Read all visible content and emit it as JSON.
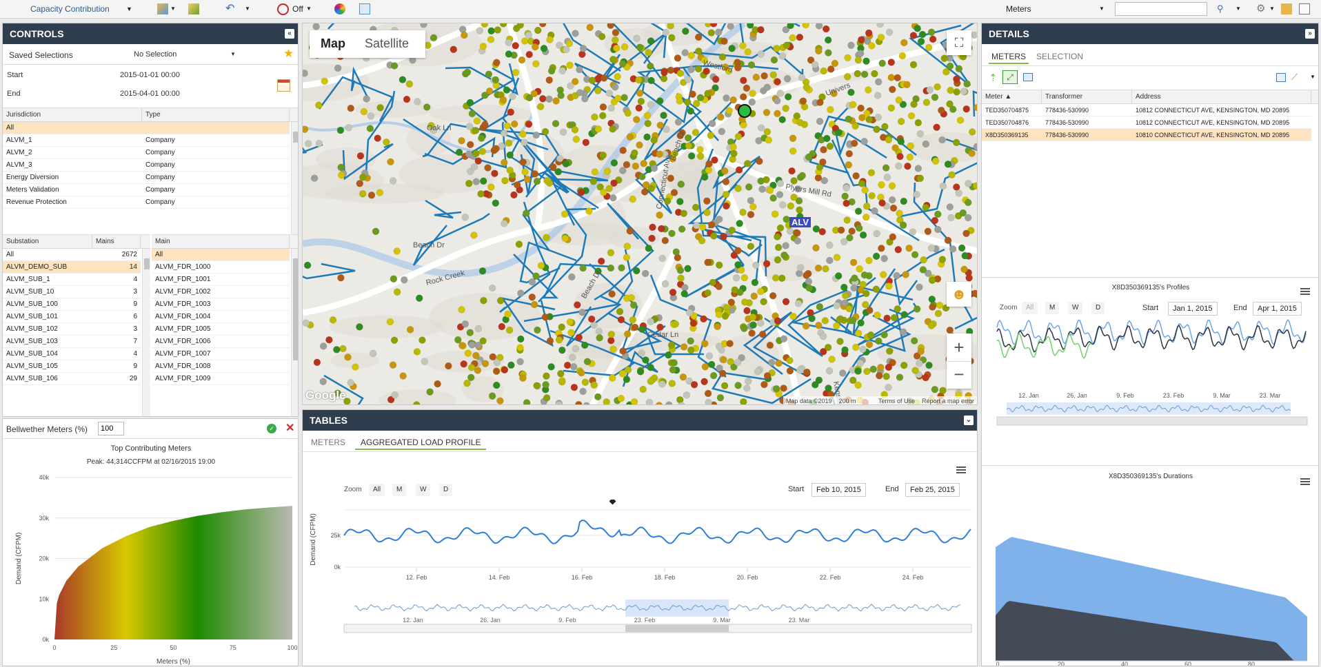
{
  "topbar": {
    "app_title": "Capacity Contribution",
    "filter_state": "Off",
    "layer_select": "Meters",
    "search_placeholder": ""
  },
  "controls": {
    "title": "CONTROLS",
    "saved_label": "Saved Selections",
    "saved_value": "No Selection",
    "start_label": "Start",
    "start_value": "2015-01-01 00:00",
    "end_label": "End",
    "end_value": "2015-04-01 00:00",
    "jurisdiction": {
      "headers": [
        "Jurisdiction",
        "Type"
      ],
      "rows": [
        [
          "All",
          ""
        ],
        [
          "ALVM_1",
          "Company"
        ],
        [
          "ALVM_2",
          "Company"
        ],
        [
          "ALVM_3",
          "Company"
        ],
        [
          "Energy Diversion",
          "Company"
        ],
        [
          "Meters Validation",
          "Company"
        ],
        [
          "Revenue Protection",
          "Company"
        ]
      ]
    },
    "substation": {
      "headers": [
        "Substation",
        "Mains"
      ],
      "rows": [
        [
          "All",
          "2672"
        ],
        [
          "ALVM_DEMO_SUB",
          "14"
        ],
        [
          "ALVM_SUB_1",
          "4"
        ],
        [
          "ALVM_SUB_10",
          "3"
        ],
        [
          "ALVM_SUB_100",
          "9"
        ],
        [
          "ALVM_SUB_101",
          "6"
        ],
        [
          "ALVM_SUB_102",
          "3"
        ],
        [
          "ALVM_SUB_103",
          "7"
        ],
        [
          "ALVM_SUB_104",
          "4"
        ],
        [
          "ALVM_SUB_105",
          "9"
        ],
        [
          "ALVM_SUB_106",
          "29"
        ]
      ]
    },
    "main": {
      "headers": [
        "Main"
      ],
      "rows": [
        "All",
        "ALVM_FDR_1000",
        "ALVM_FDR_1001",
        "ALVM_FDR_1002",
        "ALVM_FDR_1003",
        "ALVM_FDR_1004",
        "ALVM_FDR_1005",
        "ALVM_FDR_1006",
        "ALVM_FDR_1007",
        "ALVM_FDR_1008",
        "ALVM_FDR_1009"
      ]
    },
    "bellwether_label": "Bellwether Meters (%)",
    "bellwether_value": "100"
  },
  "top_chart": {
    "title": "Top Contributing Meters",
    "subtitle": "Peak: 44,314CCFPM at 02/16/2015 19:00",
    "ylabel": "Demand (CFPM)",
    "xlabel": "Meters (%)",
    "yticks": [
      "40k",
      "30k",
      "20k",
      "10k",
      "0k"
    ],
    "xticks": [
      "0",
      "25",
      "50",
      "75",
      "100"
    ]
  },
  "map": {
    "tab_map": "Map",
    "tab_satellite": "Satellite",
    "attribution": "Map data ©2019",
    "scale": "200 m",
    "terms": "Terms of Use",
    "report": "Report a map error",
    "google": "Google",
    "label": "ALV",
    "zoom_in": "+",
    "zoom_out": "−",
    "streets": [
      "Beach Dr",
      "Beach Dr",
      "Beach Dr",
      "Rock Creek",
      "Univers",
      "Connecticut Ave",
      "Plyers Mill Rd",
      "Kensington",
      "Cedar Ln",
      "Westford",
      "Oak Ln"
    ]
  },
  "tables": {
    "title": "TABLES",
    "tabs": [
      "METERS",
      "AGGREGATED LOAD PROFILE"
    ],
    "zoom_label": "Zoom",
    "zoom_buttons": [
      "All",
      "M",
      "W",
      "D"
    ],
    "start_label": "Start",
    "start_value": "Feb 10, 2015",
    "end_label": "End",
    "end_value": "Feb 25, 2015",
    "ylabel": "Demand (CFPM)",
    "yticks": [
      "25k",
      "0k"
    ],
    "xticks": [
      "12. Feb",
      "14. Feb",
      "16. Feb",
      "18. Feb",
      "20. Feb",
      "22. Feb",
      "24. Feb"
    ],
    "nav_ticks": [
      "12. Jan",
      "26. Jan",
      "9. Feb",
      "23. Feb",
      "9. Mar",
      "23. Mar"
    ]
  },
  "details": {
    "title": "DETAILS",
    "tabs": [
      "METERS",
      "SELECTION"
    ],
    "headers": [
      "Meter",
      "Transformer",
      "Address"
    ],
    "rows": [
      [
        "TED350704875",
        "778436-530990",
        "10812 CONNECTICUT AVE, KENSINGTON, MD 20895"
      ],
      [
        "TED350704876",
        "778436-530990",
        "10812 CONNECTICUT AVE, KENSINGTON, MD 20895"
      ],
      [
        "X8D350369135",
        "778436-530990",
        "10810 CONNECTICUT AVE, KENSINGTON, MD 20895"
      ]
    ],
    "profiles": {
      "title": "X8D350369135's Profiles",
      "zoom_label": "Zoom",
      "zoom_buttons": [
        "All",
        "M",
        "W",
        "D"
      ],
      "start_label": "Start",
      "start_value": "Jan 1, 2015",
      "end_label": "End",
      "end_value": "Apr 1, 2015",
      "xticks": [
        "12. Jan",
        "26. Jan",
        "9. Feb",
        "23. Feb",
        "9. Mar",
        "23. Mar"
      ]
    },
    "durations": {
      "title": "X8D350369135's Durations",
      "xticks": [
        "0",
        "20",
        "40",
        "60",
        "80"
      ]
    }
  },
  "chart_data": [
    {
      "type": "area",
      "title": "Top Contributing Meters",
      "xlabel": "Meters (%)",
      "ylabel": "Demand (CFPM)",
      "ylim": [
        0,
        40000
      ],
      "x": [
        0,
        1,
        2,
        5,
        10,
        20,
        30,
        40,
        50,
        60,
        70,
        80,
        90,
        100
      ],
      "values": [
        0,
        9000,
        11000,
        14500,
        18000,
        22500,
        25500,
        27800,
        29300,
        30500,
        31400,
        32100,
        32600,
        33000
      ]
    },
    {
      "type": "line",
      "title": "",
      "ylabel": "Demand (CFPM)",
      "categories": [
        "12. Feb",
        "14. Feb",
        "16. Feb",
        "18. Feb",
        "20. Feb",
        "22. Feb",
        "24. Feb"
      ],
      "values": [
        25000,
        26000,
        27500,
        30500,
        28000,
        27000,
        26500
      ],
      "peak": {
        "x": "16. Feb",
        "y": 44314
      }
    },
    {
      "type": "line",
      "title": "X8D350369135's Profiles",
      "categories": [
        "12. Jan",
        "26. Jan",
        "9. Feb",
        "23. Feb",
        "9. Mar",
        "23. Mar"
      ],
      "series": [
        {
          "color": "#6ea6e8",
          "values": [
            0.7,
            0.75,
            0.72,
            0.8,
            0.78,
            0.76
          ]
        },
        {
          "color": "#2d3440",
          "values": [
            0.5,
            0.55,
            0.52,
            0.6,
            0.58,
            0.56
          ]
        },
        {
          "color": "#6fd36f",
          "values": [
            0.35,
            0.3,
            0.33,
            null,
            null,
            null
          ]
        }
      ]
    },
    {
      "type": "area",
      "title": "X8D350369135's Durations",
      "x": [
        0,
        20,
        40,
        60,
        80,
        95
      ],
      "series": [
        {
          "color": "#7fb2ea",
          "values": [
            1.0,
            0.84,
            0.78,
            0.72,
            0.66,
            0.58
          ]
        },
        {
          "color": "#444b56",
          "values": [
            0.55,
            0.4,
            0.35,
            0.3,
            0.25,
            0.0
          ]
        }
      ]
    }
  ],
  "colors": {
    "header": "#2e3e4f",
    "accent": "#7cc04a",
    "selected": "#fde3c0",
    "line": "#2f7ed8",
    "pipe": "#1c7ab8"
  }
}
